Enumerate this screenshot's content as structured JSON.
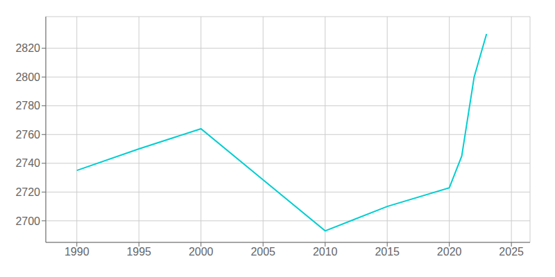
{
  "chart_data": {
    "type": "line",
    "x": [
      1990,
      1995,
      2000,
      2010,
      2015,
      2020,
      2021,
      2022,
      2023
    ],
    "values": [
      2735,
      2750,
      2764,
      2693,
      2710,
      2723,
      2745,
      2800,
      2830
    ],
    "color": "#00CED1",
    "xlim": [
      1987.5,
      2026.5
    ],
    "ylim": [
      2685,
      2842
    ],
    "xticks": [
      1990,
      1995,
      2000,
      2005,
      2010,
      2015,
      2020,
      2025
    ],
    "yticks": [
      2700,
      2720,
      2740,
      2760,
      2780,
      2800,
      2820
    ],
    "grid": true
  }
}
